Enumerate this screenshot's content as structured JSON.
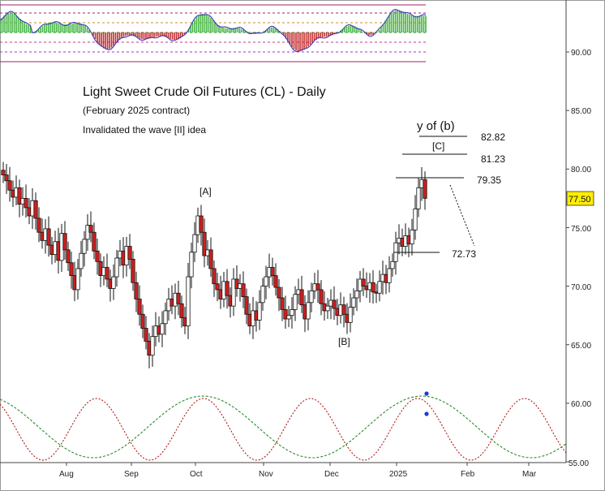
{
  "chart_data": {
    "type": "candlestick",
    "title": "Light Sweet Crude Oil Futures (CL) - Daily",
    "subtitle": "(February 2025 contract)",
    "note": "Invalidated the wave [II] idea",
    "y_axis": {
      "ticks": [
        "90.00",
        "85.00",
        "80.00",
        "75.00",
        "70.00",
        "65.00",
        "60.00",
        "55.00"
      ],
      "range": [
        55,
        95
      ],
      "position": "right"
    },
    "x_axis": {
      "ticks": [
        "Aug",
        "Sep",
        "Oct",
        "Nov",
        "Dec",
        "2025",
        "Feb",
        "Mar"
      ]
    },
    "last_price": "77.50",
    "level_labels": [
      "82.82",
      "81.23",
      "79.35",
      "72.73"
    ],
    "wave_labels": [
      "y of (b)",
      "[C]",
      "[A]",
      "[B]"
    ],
    "closes": [
      79.5,
      79.0,
      78.2,
      77.6,
      78.4,
      77.0,
      77.5,
      76.7,
      76.0,
      77.3,
      75.8,
      74.6,
      73.9,
      74.9,
      73.5,
      72.7,
      73.8,
      72.2,
      74.5,
      73.1,
      72.0,
      70.9,
      69.7,
      71.5,
      72.8,
      74.0,
      75.2,
      74.6,
      73.0,
      72.1,
      70.9,
      71.6,
      70.6,
      69.8,
      70.8,
      72.4,
      73.0,
      71.8,
      73.4,
      72.3,
      70.3,
      68.9,
      67.6,
      66.4,
      65.3,
      64.1,
      65.7,
      66.6,
      65.9,
      66.8,
      67.9,
      68.9,
      68.3,
      69.4,
      68.5,
      67.3,
      66.6,
      70.8,
      72.9,
      74.4,
      76.0,
      74.6,
      72.6,
      73.1,
      71.5,
      70.2,
      69.7,
      68.9,
      70.4,
      69.2,
      68.3,
      70.6,
      69.8,
      70.2,
      69.1,
      67.6,
      66.6,
      67.9,
      67.1,
      68.6,
      70.0,
      70.8,
      71.6,
      70.9,
      69.9,
      69.0,
      68.0,
      67.2,
      67.5,
      68.0,
      69.3,
      69.7,
      68.4,
      67.2,
      68.6,
      69.6,
      70.2,
      69.7,
      68.5,
      67.9,
      68.3,
      68.8,
      68.1,
      67.5,
      68.4,
      67.6,
      66.9,
      68.2,
      69.0,
      69.6,
      70.6,
      70.0,
      69.7,
      70.3,
      69.5,
      69.4,
      70.4,
      71.0,
      70.3,
      71.5,
      72.1,
      73.7,
      74.1,
      73.4,
      74.3,
      73.6,
      74.8,
      76.6,
      78.4,
      79.1,
      77.5
    ]
  },
  "colors": {
    "up": "#ffffff",
    "down": "#cc1f1f",
    "candle_outline": "#111111",
    "cycle_red": "#b01818",
    "cycle_green": "#2a8a2a",
    "indicator_up": "#3fb43f",
    "indicator_down": "#c42a2a",
    "indicator_line": "#3b3bb8",
    "price_box": "#ffee00"
  }
}
